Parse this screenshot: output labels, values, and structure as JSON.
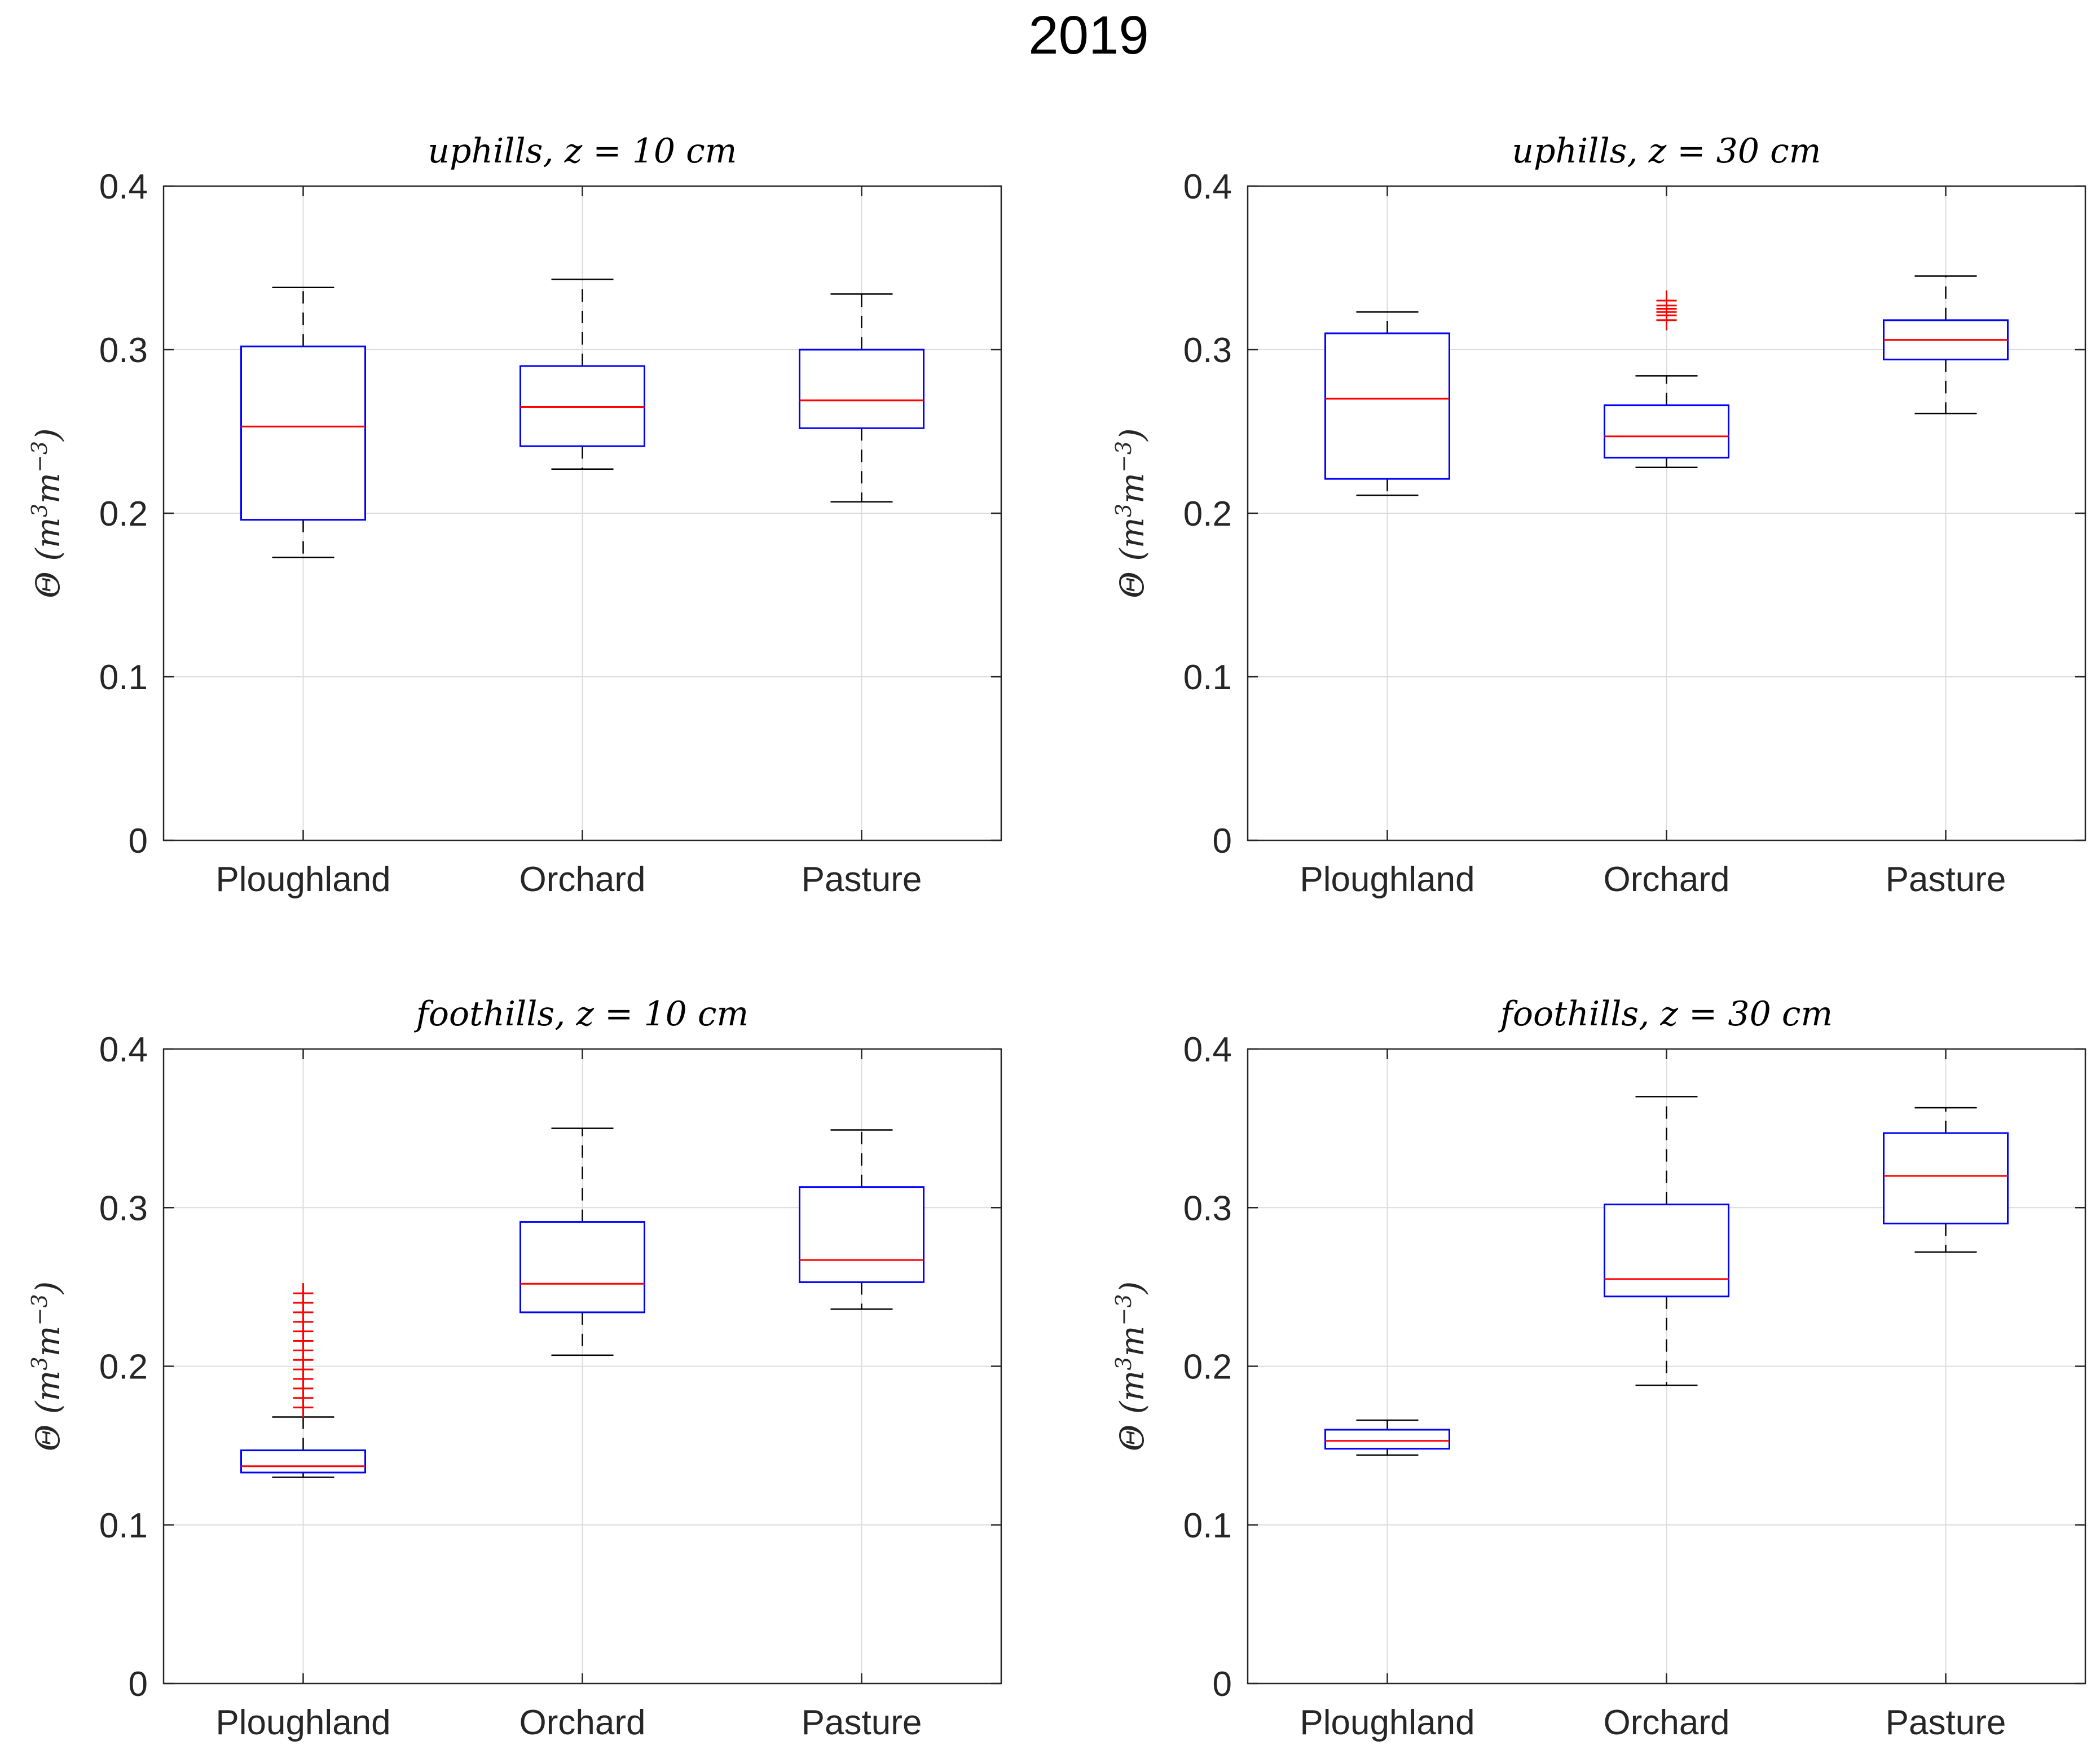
{
  "chart_data": {
    "title": "2019",
    "type": "box",
    "panels": [
      {
        "title": "uphills, z = 10 cm",
        "ylabel": "Θ (m³m⁻³)",
        "ylabel_parts": {
          "prefix": "Θ (m",
          "sup1": "3",
          "mid": "m",
          "sup2": "−3",
          "suffix": ")"
        },
        "ylim": [
          0,
          0.4
        ],
        "yticks": [
          "0",
          "0.1",
          "0.2",
          "0.3",
          "0.4"
        ],
        "grid": true,
        "categories": [
          "Ploughland",
          "Orchard",
          "Pasture"
        ],
        "boxes": [
          {
            "name": "Ploughland",
            "whisker_low": 0.173,
            "q1": 0.196,
            "median": 0.253,
            "q3": 0.302,
            "whisker_high": 0.338,
            "outliers": []
          },
          {
            "name": "Orchard",
            "whisker_low": 0.227,
            "q1": 0.241,
            "median": 0.265,
            "q3": 0.29,
            "whisker_high": 0.343,
            "outliers": []
          },
          {
            "name": "Pasture",
            "whisker_low": 0.207,
            "q1": 0.252,
            "median": 0.269,
            "q3": 0.3,
            "whisker_high": 0.334,
            "outliers": []
          }
        ]
      },
      {
        "title": "uphills, z = 30 cm",
        "ylabel": "Θ (m³m⁻³)",
        "ylabel_parts": {
          "prefix": "Θ (m",
          "sup1": "3",
          "mid": "m",
          "sup2": "−3",
          "suffix": ")"
        },
        "ylim": [
          0,
          0.4
        ],
        "yticks": [
          "0",
          "0.1",
          "0.2",
          "0.3",
          "0.4"
        ],
        "grid": true,
        "categories": [
          "Ploughland",
          "Orchard",
          "Pasture"
        ],
        "boxes": [
          {
            "name": "Ploughland",
            "whisker_low": 0.211,
            "q1": 0.221,
            "median": 0.27,
            "q3": 0.31,
            "whisker_high": 0.323,
            "outliers": []
          },
          {
            "name": "Orchard",
            "whisker_low": 0.228,
            "q1": 0.234,
            "median": 0.247,
            "q3": 0.266,
            "whisker_high": 0.284,
            "outliers": [
              0.318,
              0.321,
              0.323,
              0.325,
              0.327,
              0.33
            ]
          },
          {
            "name": "Pasture",
            "whisker_low": 0.261,
            "q1": 0.294,
            "median": 0.306,
            "q3": 0.318,
            "whisker_high": 0.345,
            "outliers": []
          }
        ]
      },
      {
        "title": "foothills, z = 10 cm",
        "ylabel": "Θ (m³m⁻³)",
        "ylabel_parts": {
          "prefix": "Θ (m",
          "sup1": "3",
          "mid": "m",
          "sup2": "−3",
          "suffix": ")"
        },
        "ylim": [
          0,
          0.4
        ],
        "yticks": [
          "0",
          "0.1",
          "0.2",
          "0.3",
          "0.4"
        ],
        "grid": true,
        "categories": [
          "Ploughland",
          "Orchard",
          "Pasture"
        ],
        "boxes": [
          {
            "name": "Ploughland",
            "whisker_low": 0.13,
            "q1": 0.133,
            "median": 0.137,
            "q3": 0.147,
            "whisker_high": 0.168,
            "outliers": [
              0.174,
              0.18,
              0.186,
              0.192,
              0.198,
              0.204,
              0.21,
              0.216,
              0.222,
              0.228,
              0.234,
              0.24,
              0.246
            ]
          },
          {
            "name": "Orchard",
            "whisker_low": 0.207,
            "q1": 0.234,
            "median": 0.252,
            "q3": 0.291,
            "whisker_high": 0.35,
            "outliers": []
          },
          {
            "name": "Pasture",
            "whisker_low": 0.236,
            "q1": 0.253,
            "median": 0.267,
            "q3": 0.313,
            "whisker_high": 0.349,
            "outliers": []
          }
        ]
      },
      {
        "title": "foothills, z = 30 cm",
        "ylabel": "Θ (m³m⁻³)",
        "ylabel_parts": {
          "prefix": "Θ (m",
          "sup1": "3",
          "mid": "m",
          "sup2": "−3",
          "suffix": ")"
        },
        "ylim": [
          0,
          0.4
        ],
        "yticks": [
          "0",
          "0.1",
          "0.2",
          "0.3",
          "0.4"
        ],
        "grid": true,
        "categories": [
          "Ploughland",
          "Orchard",
          "Pasture"
        ],
        "boxes": [
          {
            "name": "Ploughland",
            "whisker_low": 0.144,
            "q1": 0.148,
            "median": 0.153,
            "q3": 0.16,
            "whisker_high": 0.166,
            "outliers": []
          },
          {
            "name": "Orchard",
            "whisker_low": 0.188,
            "q1": 0.244,
            "median": 0.255,
            "q3": 0.302,
            "whisker_high": 0.37,
            "outliers": []
          },
          {
            "name": "Pasture",
            "whisker_low": 0.272,
            "q1": 0.29,
            "median": 0.32,
            "q3": 0.347,
            "whisker_high": 0.363,
            "outliers": []
          }
        ]
      }
    ]
  },
  "colors": {
    "box": "#0000ff",
    "median": "#ff0000",
    "whisker": "#000000",
    "outlier": "#ff0000",
    "grid": "#dcdcdc",
    "axis": "#262626"
  }
}
